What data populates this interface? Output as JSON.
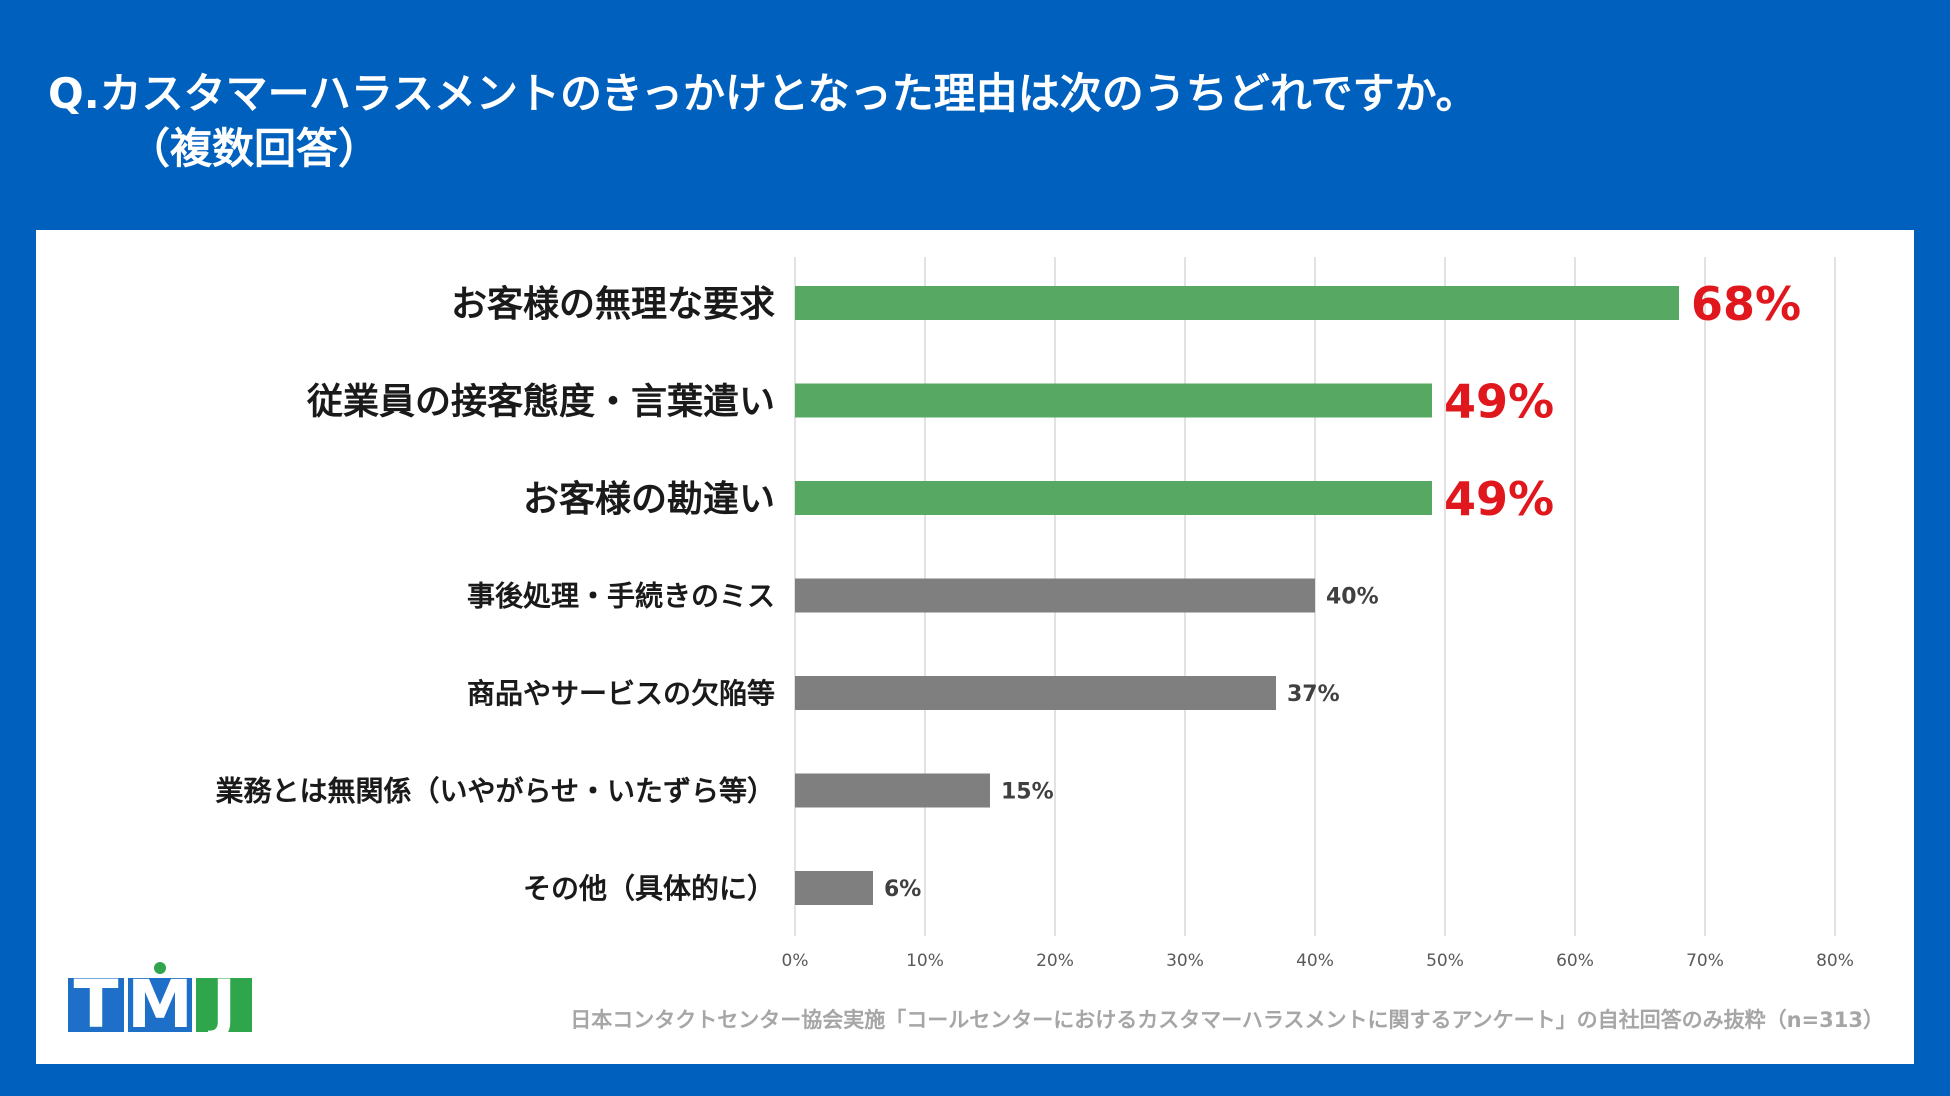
{
  "header": {
    "question_line1": "Q.カスタマーハラスメントのきっかけとなった理由は次のうちどれですか。",
    "question_line2": "（複数回答）"
  },
  "colors": {
    "background": "#0060BE",
    "highlight_bar": "#57A862",
    "normal_bar": "#7F7F7F",
    "highlight_label": "#E0181E",
    "grid": "#D9D9D9"
  },
  "chart_data": {
    "type": "bar",
    "orientation": "horizontal",
    "categories": [
      "お客様の無理な要求",
      "従業員の接客態度・言葉遣い",
      "お客様の勘違い",
      "事後処理・手続きのミス",
      "商品やサービスの欠陥等",
      "業務とは無関係（いやがらせ・いたずら等）",
      "その他（具体的に）"
    ],
    "values": [
      68,
      49,
      49,
      40,
      37,
      15,
      6
    ],
    "value_labels": [
      "68%",
      "49%",
      "49%",
      "40%",
      "37%",
      "15%",
      "6%"
    ],
    "highlighted": [
      true,
      true,
      true,
      false,
      false,
      false,
      false
    ],
    "xlim": [
      0,
      80
    ],
    "xticks": [
      "0%",
      "10%",
      "20%",
      "30%",
      "40%",
      "50%",
      "60%",
      "70%",
      "80%"
    ],
    "grid": true
  },
  "logo": {
    "t": "T",
    "m": "M",
    "j": "J"
  },
  "footer": {
    "source": "日本コンタクトセンター協会実施「コールセンターにおけるカスタマーハラスメントに関するアンケート」の自社回答のみ抜粋（n=313）"
  }
}
